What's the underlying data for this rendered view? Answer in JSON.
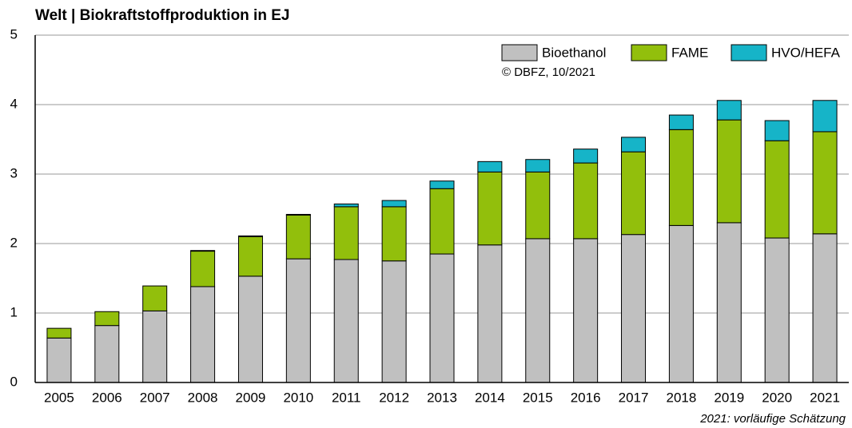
{
  "chart_data": {
    "type": "stacked_bar",
    "title": "Welt | Biokraftstoffproduktion in EJ",
    "annotation": "© DBFZ, 10/2021",
    "footnote": "2021: vorläufige Schätzung",
    "categories": [
      "2005",
      "2006",
      "2007",
      "2008",
      "2009",
      "2010",
      "2011",
      "2012",
      "2013",
      "2014",
      "2015",
      "2016",
      "2017",
      "2018",
      "2019",
      "2020",
      "2021"
    ],
    "series": [
      {
        "name": "Bioethanol",
        "color": "#c0c0c0",
        "values": [
          0.64,
          0.82,
          1.03,
          1.38,
          1.53,
          1.78,
          1.77,
          1.75,
          1.85,
          1.98,
          2.07,
          2.07,
          2.13,
          2.26,
          2.3,
          2.08,
          2.14
        ]
      },
      {
        "name": "FAME",
        "color": "#92bf0c",
        "values": [
          0.14,
          0.2,
          0.36,
          0.51,
          0.57,
          0.63,
          0.76,
          0.78,
          0.94,
          1.05,
          0.96,
          1.09,
          1.19,
          1.38,
          1.48,
          1.4,
          1.47
        ]
      },
      {
        "name": "HVO/HEFA",
        "color": "#16b4c8",
        "values": [
          0,
          0,
          0,
          0.01,
          0.01,
          0.01,
          0.04,
          0.09,
          0.11,
          0.15,
          0.18,
          0.2,
          0.21,
          0.21,
          0.28,
          0.29,
          0.45
        ]
      }
    ],
    "ylim": [
      0,
      5
    ],
    "yticks": [
      0,
      1,
      2,
      3,
      4,
      5
    ],
    "grid": true
  }
}
